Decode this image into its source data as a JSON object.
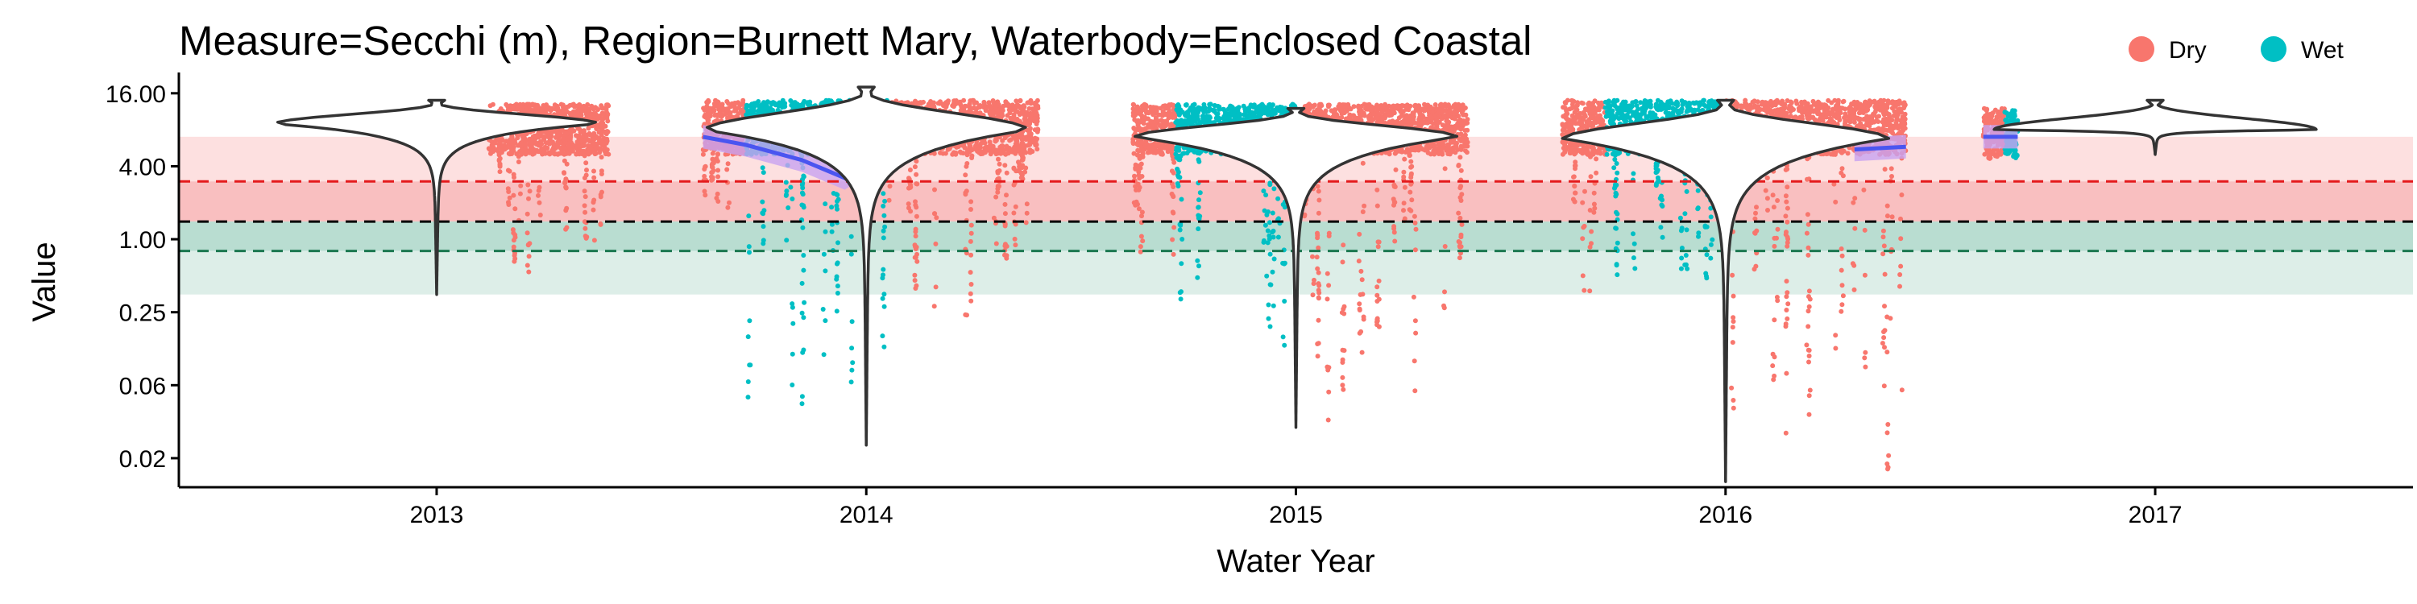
{
  "chart_data": {
    "type": "violin-scatter",
    "title": "Measure=Secchi (m), Region=Burnett Mary, Waterbody=Enclosed Coastal",
    "xlabel": "Water Year",
    "ylabel": "Value",
    "x_ticks": [
      "2013",
      "2014",
      "2015",
      "2016",
      "2017"
    ],
    "y_scale": "log2",
    "y_ticks": [
      {
        "value": 16,
        "label": "16.00"
      },
      {
        "value": 4,
        "label": "4.00"
      },
      {
        "value": 1,
        "label": "1.00"
      },
      {
        "value": 0.25,
        "label": "0.25"
      },
      {
        "value": 0.0625,
        "label": "0.06"
      },
      {
        "value": 0.015625,
        "label": "0.02"
      }
    ],
    "ylim": [
      0.009,
      22
    ],
    "xlim": [
      2012.4,
      2017.6
    ],
    "legend": {
      "position": "top-right",
      "entries": [
        {
          "name": "Dry",
          "color": "#F8766D"
        },
        {
          "name": "Wet",
          "color": "#00BFC4"
        }
      ]
    },
    "reference_lines": [
      {
        "value": 3.0,
        "color": "#E41A1C",
        "style": "dashed"
      },
      {
        "value": 1.4,
        "color": "#000000",
        "style": "dashed"
      },
      {
        "value": 0.8,
        "color": "#1B7850",
        "style": "dashed"
      }
    ],
    "bands": [
      {
        "from": 3.0,
        "to": 7.0,
        "color": "#FDE0E0"
      },
      {
        "from": 1.4,
        "to": 3.0,
        "color": "#F9BFC0"
      },
      {
        "from": 0.8,
        "to": 1.4,
        "color": "#B9DDD1"
      },
      {
        "from": 0.35,
        "to": 0.8,
        "color": "#DDEEE8"
      }
    ],
    "violins": [
      {
        "year": 2013,
        "median": 9.0,
        "min": 0.35,
        "max": 14.0
      },
      {
        "year": 2014,
        "median": 8.0,
        "min": 0.02,
        "max": 18.0
      },
      {
        "year": 2015,
        "median": 7.0,
        "min": 0.028,
        "max": 12.0
      },
      {
        "year": 2016,
        "median": 6.8,
        "min": 0.01,
        "max": 14.0
      },
      {
        "year": 2017,
        "median": 8.0,
        "min": 5.0,
        "max": 14.0
      }
    ],
    "point_groups": [
      {
        "season": "Dry",
        "x_from": 2013.12,
        "x_to": 2013.4,
        "core_low": 5.0,
        "core_high": 13.0,
        "min": 0.35
      },
      {
        "season": "Dry",
        "x_from": 2013.62,
        "x_to": 2013.72,
        "core_low": 5.0,
        "core_high": 14.0,
        "min": 1.2
      },
      {
        "season": "Wet",
        "x_from": 2013.72,
        "x_to": 2013.98,
        "core_low": 5.0,
        "core_high": 14.0,
        "min": 0.02
      },
      {
        "season": "Wet",
        "x_from": 2013.98,
        "x_to": 2014.05,
        "core_low": 5.0,
        "core_high": 14.0,
        "min": 0.1
      },
      {
        "season": "Dry",
        "x_from": 2014.05,
        "x_to": 2014.4,
        "core_low": 5.0,
        "core_high": 14.0,
        "min": 0.2
      },
      {
        "season": "Dry",
        "x_from": 2014.62,
        "x_to": 2014.72,
        "core_low": 5.0,
        "core_high": 13.0,
        "min": 0.5
      },
      {
        "season": "Wet",
        "x_from": 2014.72,
        "x_to": 2015.0,
        "core_low": 5.0,
        "core_high": 13.0,
        "min": 0.1
      },
      {
        "season": "Dry",
        "x_from": 2015.0,
        "x_to": 2015.4,
        "core_low": 5.0,
        "core_high": 13.0,
        "min": 0.028
      },
      {
        "season": "Dry",
        "x_from": 2015.62,
        "x_to": 2015.72,
        "core_low": 5.0,
        "core_high": 14.0,
        "min": 0.03
      },
      {
        "season": "Wet",
        "x_from": 2015.72,
        "x_to": 2016.0,
        "core_low": 5.0,
        "core_high": 14.0,
        "min": 0.3
      },
      {
        "season": "Dry",
        "x_from": 2016.0,
        "x_to": 2016.42,
        "core_low": 5.0,
        "core_high": 14.0,
        "min": 0.01
      },
      {
        "season": "Dry",
        "x_from": 2016.6,
        "x_to": 2016.65,
        "core_low": 5.0,
        "core_high": 12.0,
        "min": 4.5
      },
      {
        "season": "Wet",
        "x_from": 2016.65,
        "x_to": 2016.68,
        "core_low": 5.0,
        "core_high": 12.0,
        "min": 4.5
      }
    ],
    "trend_line": {
      "color": "#4A55F0",
      "ribbon_color": "#C8A2F0",
      "points": [
        {
          "x": 2013.12,
          "y": 7.0
        },
        {
          "x": 2013.4,
          "y": 7.0
        },
        {
          "x": 2013.62,
          "y": 7.0
        },
        {
          "x": 2013.72,
          "y": 6.0
        },
        {
          "x": 2013.85,
          "y": 4.5
        },
        {
          "x": 2013.95,
          "y": 3.2
        },
        {
          "x": 2014.05,
          "y": 5.5
        },
        {
          "x": 2014.25,
          "y": 6.5
        },
        {
          "x": 2014.4,
          "y": 6.0
        },
        {
          "x": 2014.62,
          "y": 6.5
        },
        {
          "x": 2015.0,
          "y": 6.5
        },
        {
          "x": 2015.4,
          "y": 6.5
        },
        {
          "x": 2015.62,
          "y": 5.0
        },
        {
          "x": 2015.8,
          "y": 6.0
        },
        {
          "x": 2016.0,
          "y": 6.2
        },
        {
          "x": 2016.3,
          "y": 5.5
        },
        {
          "x": 2016.42,
          "y": 5.8
        },
        {
          "x": 2016.6,
          "y": 7.0
        },
        {
          "x": 2016.68,
          "y": 7.0
        }
      ]
    }
  }
}
